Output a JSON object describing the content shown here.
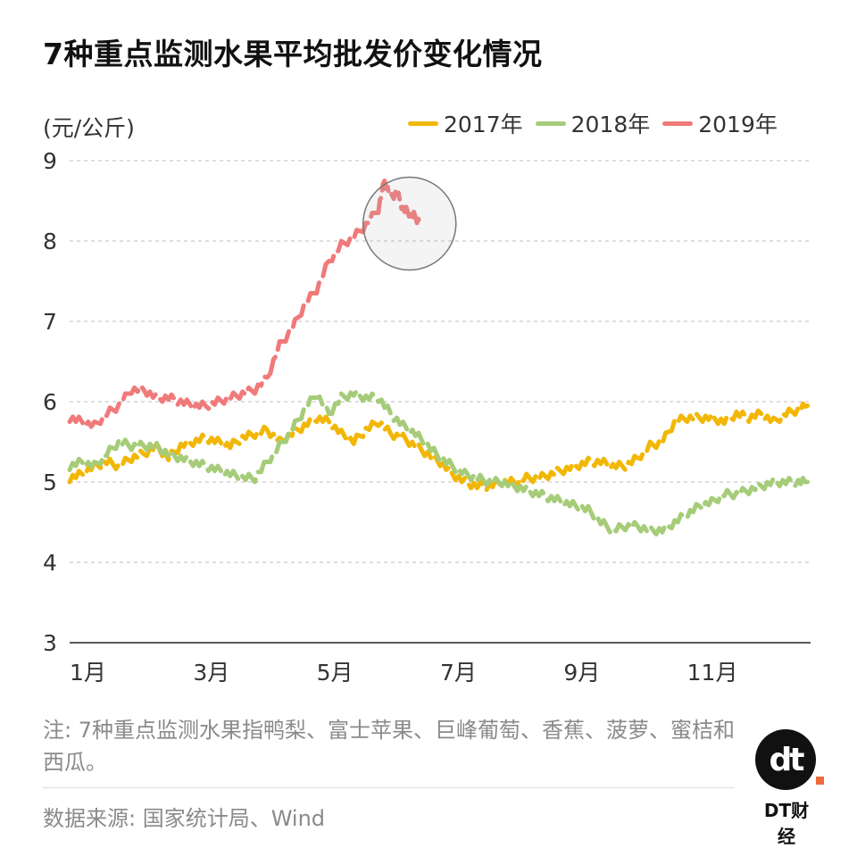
{
  "chart_data": {
    "type": "line",
    "title": "7种重点监测水果平均批发价变化情况",
    "ylabel": "(元/公斤)",
    "ylim": [
      3,
      9
    ],
    "yticks": [
      "3",
      "4",
      "5",
      "6",
      "7",
      "8",
      "9"
    ],
    "xticks": [
      {
        "label": "1月",
        "x": 1
      },
      {
        "label": "3月",
        "x": 3
      },
      {
        "label": "5月",
        "x": 5
      },
      {
        "label": "7月",
        "x": 7
      },
      {
        "label": "9月",
        "x": 9
      },
      {
        "label": "11月",
        "x": 11
      }
    ],
    "xlim": [
      1,
      13
    ],
    "grid": true,
    "legend_position": "top-right",
    "series": [
      {
        "name": "2017年",
        "color": "#f2b705",
        "points": [
          [
            1.0,
            5.05
          ],
          [
            1.2,
            5.1
          ],
          [
            1.4,
            5.2
          ],
          [
            1.6,
            5.25
          ],
          [
            1.8,
            5.2
          ],
          [
            2.0,
            5.3
          ],
          [
            2.2,
            5.35
          ],
          [
            2.4,
            5.45
          ],
          [
            2.6,
            5.3
          ],
          [
            2.8,
            5.45
          ],
          [
            3.0,
            5.5
          ],
          [
            3.2,
            5.55
          ],
          [
            3.4,
            5.5
          ],
          [
            3.6,
            5.45
          ],
          [
            3.8,
            5.55
          ],
          [
            4.0,
            5.6
          ],
          [
            4.2,
            5.65
          ],
          [
            4.4,
            5.5
          ],
          [
            4.6,
            5.6
          ],
          [
            4.8,
            5.7
          ],
          [
            5.0,
            5.8
          ],
          [
            5.2,
            5.75
          ],
          [
            5.4,
            5.6
          ],
          [
            5.6,
            5.5
          ],
          [
            5.8,
            5.65
          ],
          [
            6.0,
            5.75
          ],
          [
            6.2,
            5.6
          ],
          [
            6.4,
            5.55
          ],
          [
            6.6,
            5.45
          ],
          [
            6.8,
            5.35
          ],
          [
            7.0,
            5.25
          ],
          [
            7.2,
            5.1
          ],
          [
            7.4,
            5.0
          ],
          [
            7.6,
            4.95
          ],
          [
            7.8,
            4.95
          ],
          [
            8.0,
            5.0
          ],
          [
            8.2,
            5.0
          ],
          [
            8.4,
            5.05
          ],
          [
            8.6,
            5.05
          ],
          [
            8.8,
            5.1
          ],
          [
            9.0,
            5.15
          ],
          [
            9.2,
            5.2
          ],
          [
            9.4,
            5.25
          ],
          [
            9.6,
            5.25
          ],
          [
            9.8,
            5.2
          ],
          [
            10.0,
            5.2
          ],
          [
            10.2,
            5.3
          ],
          [
            10.4,
            5.45
          ],
          [
            10.6,
            5.5
          ],
          [
            10.8,
            5.75
          ],
          [
            11.0,
            5.8
          ],
          [
            11.2,
            5.8
          ],
          [
            11.4,
            5.8
          ],
          [
            11.6,
            5.75
          ],
          [
            11.8,
            5.85
          ],
          [
            12.0,
            5.8
          ],
          [
            12.2,
            5.85
          ],
          [
            12.4,
            5.75
          ],
          [
            12.6,
            5.85
          ],
          [
            12.8,
            5.9
          ],
          [
            12.95,
            5.95
          ]
        ]
      },
      {
        "name": "2018年",
        "color": "#a6cc7a",
        "points": [
          [
            1.0,
            5.2
          ],
          [
            1.2,
            5.25
          ],
          [
            1.4,
            5.2
          ],
          [
            1.6,
            5.35
          ],
          [
            1.8,
            5.5
          ],
          [
            2.0,
            5.45
          ],
          [
            2.2,
            5.45
          ],
          [
            2.4,
            5.45
          ],
          [
            2.6,
            5.35
          ],
          [
            2.8,
            5.3
          ],
          [
            3.0,
            5.25
          ],
          [
            3.2,
            5.2
          ],
          [
            3.4,
            5.15
          ],
          [
            3.6,
            5.1
          ],
          [
            3.8,
            5.05
          ],
          [
            4.0,
            5.05
          ],
          [
            4.2,
            5.25
          ],
          [
            4.4,
            5.45
          ],
          [
            4.6,
            5.65
          ],
          [
            4.8,
            5.9
          ],
          [
            5.0,
            6.1
          ],
          [
            5.2,
            5.85
          ],
          [
            5.4,
            6.05
          ],
          [
            5.6,
            6.1
          ],
          [
            5.8,
            6.05
          ],
          [
            6.0,
            6.05
          ],
          [
            6.2,
            5.85
          ],
          [
            6.4,
            5.7
          ],
          [
            6.6,
            5.6
          ],
          [
            6.8,
            5.45
          ],
          [
            7.0,
            5.3
          ],
          [
            7.2,
            5.2
          ],
          [
            7.4,
            5.1
          ],
          [
            7.6,
            5.05
          ],
          [
            7.8,
            5.0
          ],
          [
            8.0,
            5.0
          ],
          [
            8.2,
            4.95
          ],
          [
            8.4,
            4.9
          ],
          [
            8.6,
            4.85
          ],
          [
            8.8,
            4.8
          ],
          [
            9.0,
            4.75
          ],
          [
            9.2,
            4.7
          ],
          [
            9.4,
            4.65
          ],
          [
            9.6,
            4.5
          ],
          [
            9.8,
            4.4
          ],
          [
            10.0,
            4.45
          ],
          [
            10.2,
            4.45
          ],
          [
            10.4,
            4.4
          ],
          [
            10.6,
            4.4
          ],
          [
            10.8,
            4.5
          ],
          [
            11.0,
            4.6
          ],
          [
            11.2,
            4.7
          ],
          [
            11.4,
            4.75
          ],
          [
            11.6,
            4.85
          ],
          [
            11.8,
            4.85
          ],
          [
            12.0,
            4.9
          ],
          [
            12.2,
            4.95
          ],
          [
            12.4,
            5.0
          ],
          [
            12.6,
            5.0
          ],
          [
            12.8,
            5.0
          ],
          [
            12.95,
            5.0
          ]
        ]
      },
      {
        "name": "2019年",
        "color": "#f07a7a",
        "points": [
          [
            1.0,
            5.8
          ],
          [
            1.2,
            5.75
          ],
          [
            1.4,
            5.7
          ],
          [
            1.6,
            5.85
          ],
          [
            1.8,
            5.95
          ],
          [
            2.0,
            6.15
          ],
          [
            2.2,
            6.15
          ],
          [
            2.4,
            6.05
          ],
          [
            2.6,
            6.05
          ],
          [
            2.8,
            6.0
          ],
          [
            3.0,
            5.95
          ],
          [
            3.2,
            5.95
          ],
          [
            3.4,
            6.0
          ],
          [
            3.6,
            6.05
          ],
          [
            3.8,
            6.1
          ],
          [
            4.0,
            6.15
          ],
          [
            4.2,
            6.3
          ],
          [
            4.4,
            6.7
          ],
          [
            4.6,
            6.9
          ],
          [
            4.8,
            7.2
          ],
          [
            5.0,
            7.4
          ],
          [
            5.2,
            7.75
          ],
          [
            5.4,
            7.95
          ],
          [
            5.6,
            8.05
          ],
          [
            5.8,
            8.2
          ],
          [
            6.0,
            8.4
          ],
          [
            6.1,
            8.75
          ],
          [
            6.2,
            8.55
          ],
          [
            6.3,
            8.6
          ],
          [
            6.4,
            8.4
          ],
          [
            6.5,
            8.35
          ],
          [
            6.6,
            8.3
          ],
          [
            6.7,
            8.2
          ]
        ]
      }
    ],
    "annotation_circle": "around 2019 peak"
  },
  "note": "注: 7种重点监测水果指鸭梨、富士苹果、巨峰葡萄、香蕉、菠萝、蜜桔和西瓜。",
  "source": "数据来源: 国家统计局、Wind",
  "brand": {
    "logo_glyph": "dt",
    "name": "DT财经"
  }
}
